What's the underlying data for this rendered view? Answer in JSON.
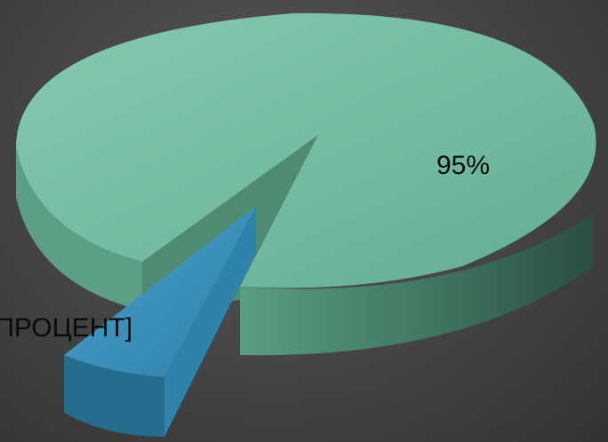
{
  "chart_data": {
    "type": "pie",
    "three_d": true,
    "title": "",
    "legend": "none",
    "slices": [
      {
        "label": "95%",
        "value": 95,
        "color": "#6db8a0"
      },
      {
        "label": "[ПРОЦЕНТ]",
        "value": 5,
        "color": "#3a8fb8",
        "exploded": true
      }
    ]
  }
}
